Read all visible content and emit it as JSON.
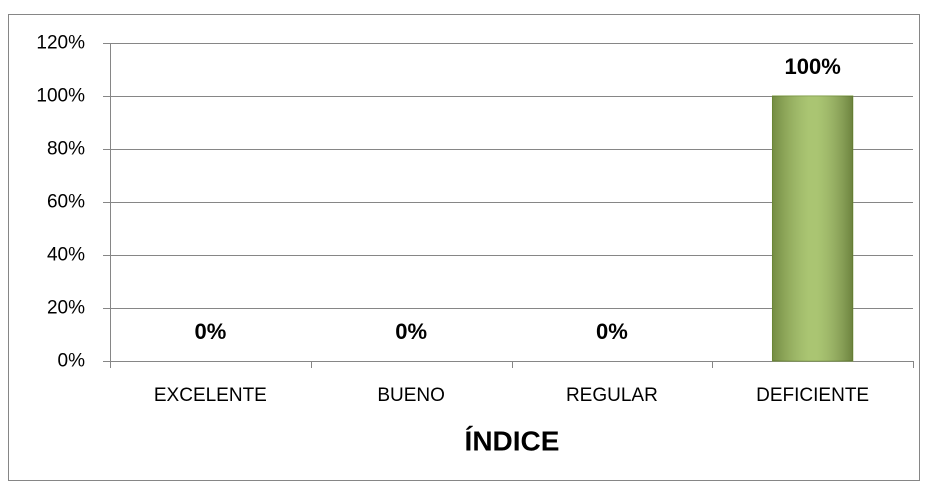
{
  "chart_data": {
    "type": "bar",
    "x_label": "ÍNDICE",
    "categories": [
      "EXCELENTE",
      "BUENO",
      "REGULAR",
      "DEFICIENTE"
    ],
    "values": [
      0,
      0,
      0,
      100
    ],
    "value_labels": [
      "0%",
      "0%",
      "0%",
      "100%"
    ],
    "color": "#9bbb59",
    "ylim": [
      0,
      120
    ],
    "yticks": [
      {
        "value": 0,
        "label": "0%"
      },
      {
        "value": 20,
        "label": "20%"
      },
      {
        "value": 40,
        "label": "40%"
      },
      {
        "value": 60,
        "label": "60%"
      },
      {
        "value": 80,
        "label": "80%"
      },
      {
        "value": 100,
        "label": "100%"
      },
      {
        "value": 120,
        "label": "120%"
      }
    ],
    "grid": true
  }
}
